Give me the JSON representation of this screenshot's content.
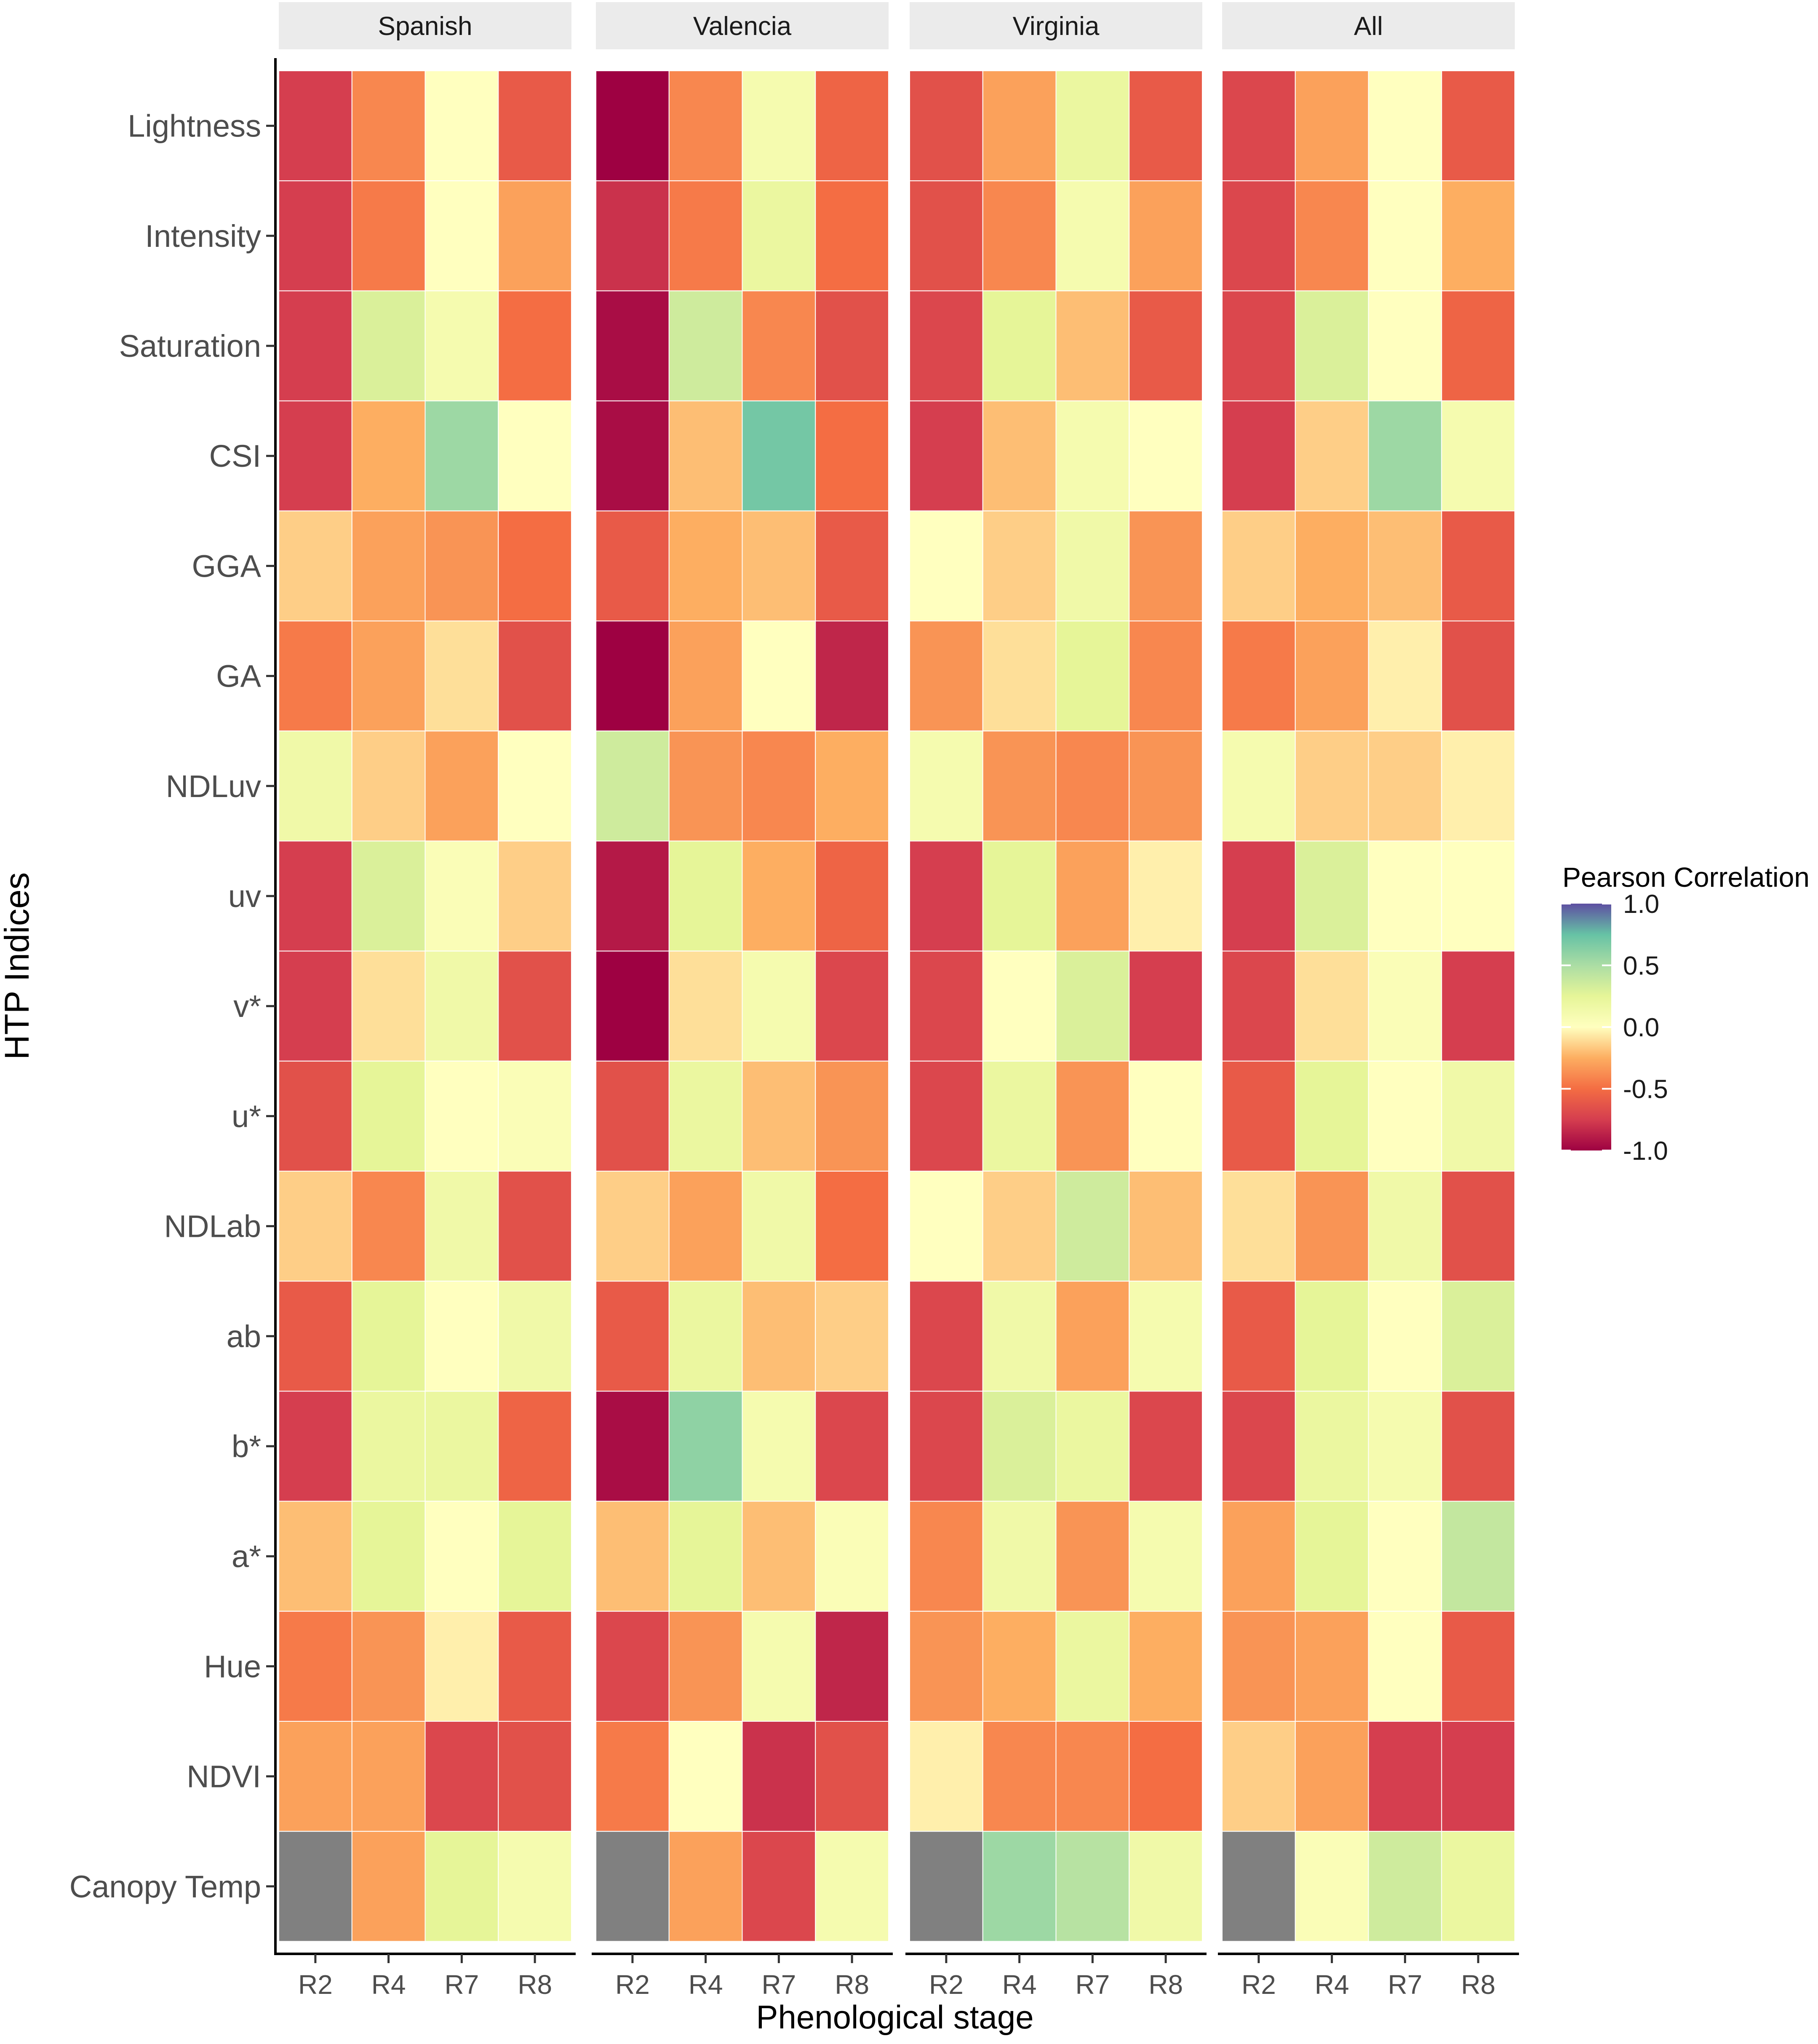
{
  "chart_data": {
    "type": "heatmap",
    "facets": [
      "Spanish",
      "Valencia",
      "Virginia",
      "All"
    ],
    "x_categories": [
      "R2",
      "R4",
      "R7",
      "R8"
    ],
    "y_categories": [
      "Lightness",
      "Intensity",
      "Saturation",
      "CSI",
      "GGA",
      "GA",
      "NDLuv",
      "uv",
      "v*",
      "u*",
      "NDLab",
      "ab",
      "b*",
      "a*",
      "Hue",
      "NDVI",
      "Canopy Temp"
    ],
    "xlabel": "Phenological stage",
    "ylabel": "HTP Indices",
    "legend": {
      "title": "Pearson Correlation",
      "range": [
        -1,
        1
      ],
      "ticks": [
        1.0,
        0.5,
        0.0,
        -0.5,
        -1.0
      ],
      "tick_labels": [
        "1.0",
        "0.5",
        "0.0",
        "-0.5",
        "-1.0"
      ]
    },
    "missing_color": "#808080",
    "values": {
      "Spanish": [
        [
          -0.75,
          -0.4,
          0.0,
          -0.6
        ],
        [
          -0.75,
          -0.45,
          0.0,
          -0.3
        ],
        [
          -0.75,
          0.3,
          0.1,
          -0.5
        ],
        [
          -0.75,
          -0.25,
          0.55,
          0.0
        ],
        [
          -0.15,
          -0.3,
          -0.35,
          -0.5
        ],
        [
          -0.45,
          -0.3,
          -0.1,
          -0.65
        ],
        [
          0.15,
          -0.15,
          -0.3,
          0.0
        ],
        [
          -0.75,
          0.3,
          0.05,
          -0.15
        ],
        [
          -0.75,
          -0.1,
          0.15,
          -0.65
        ],
        [
          -0.65,
          0.25,
          0.0,
          0.05
        ],
        [
          -0.15,
          -0.4,
          0.15,
          -0.65
        ],
        [
          -0.6,
          0.25,
          0.0,
          0.15
        ],
        [
          -0.75,
          0.2,
          0.2,
          -0.55
        ],
        [
          -0.2,
          0.25,
          0.0,
          0.25
        ],
        [
          -0.45,
          -0.35,
          -0.05,
          -0.6
        ],
        [
          -0.3,
          -0.3,
          -0.7,
          -0.65
        ],
        [
          null,
          -0.3,
          0.25,
          0.1
        ]
      ],
      "Valencia": [
        [
          -1.0,
          -0.4,
          0.1,
          -0.55
        ],
        [
          -0.8,
          -0.45,
          0.2,
          -0.5
        ],
        [
          -0.95,
          0.35,
          -0.4,
          -0.65
        ],
        [
          -0.95,
          -0.2,
          0.7,
          -0.5
        ],
        [
          -0.6,
          -0.25,
          -0.2,
          -0.6
        ],
        [
          -1.0,
          -0.3,
          0.0,
          -0.85
        ],
        [
          0.35,
          -0.35,
          -0.4,
          -0.25
        ],
        [
          -0.9,
          0.25,
          -0.25,
          -0.55
        ],
        [
          -1.0,
          -0.1,
          0.1,
          -0.7
        ],
        [
          -0.65,
          0.2,
          -0.2,
          -0.35
        ],
        [
          -0.15,
          -0.3,
          0.15,
          -0.5
        ],
        [
          -0.6,
          0.2,
          -0.2,
          -0.15
        ],
        [
          -0.95,
          0.6,
          0.1,
          -0.7
        ],
        [
          -0.2,
          0.25,
          -0.2,
          0.05
        ],
        [
          -0.7,
          -0.35,
          0.1,
          -0.85
        ],
        [
          -0.45,
          0.0,
          -0.8,
          -0.65
        ],
        [
          null,
          -0.3,
          -0.7,
          0.1
        ]
      ],
      "Virginia": [
        [
          -0.65,
          -0.3,
          0.2,
          -0.6
        ],
        [
          -0.65,
          -0.4,
          0.1,
          -0.3
        ],
        [
          -0.7,
          0.25,
          -0.2,
          -0.6
        ],
        [
          -0.75,
          -0.2,
          0.1,
          0.0
        ],
        [
          0.0,
          -0.15,
          0.15,
          -0.35
        ],
        [
          -0.35,
          -0.1,
          0.25,
          -0.4
        ],
        [
          0.1,
          -0.35,
          -0.4,
          -0.35
        ],
        [
          -0.75,
          0.25,
          -0.3,
          -0.05
        ],
        [
          -0.7,
          0.0,
          0.3,
          -0.75
        ],
        [
          -0.7,
          0.2,
          -0.35,
          0.0
        ],
        [
          0.0,
          -0.15,
          0.35,
          -0.2
        ],
        [
          -0.7,
          0.15,
          -0.3,
          0.1
        ],
        [
          -0.7,
          0.3,
          0.2,
          -0.7
        ],
        [
          -0.4,
          0.15,
          -0.35,
          0.1
        ],
        [
          -0.35,
          -0.25,
          0.2,
          -0.25
        ],
        [
          -0.05,
          -0.4,
          -0.4,
          -0.5
        ],
        [
          null,
          0.55,
          0.45,
          0.15
        ]
      ],
      "All": [
        [
          -0.7,
          -0.3,
          0.0,
          -0.6
        ],
        [
          -0.7,
          -0.4,
          0.0,
          -0.25
        ],
        [
          -0.7,
          0.3,
          0.0,
          -0.55
        ],
        [
          -0.75,
          -0.15,
          0.55,
          0.1
        ],
        [
          -0.15,
          -0.25,
          -0.2,
          -0.6
        ],
        [
          -0.45,
          -0.3,
          -0.05,
          -0.65
        ],
        [
          0.1,
          -0.15,
          -0.15,
          -0.05
        ],
        [
          -0.75,
          0.3,
          0.0,
          0.0
        ],
        [
          -0.7,
          -0.1,
          0.05,
          -0.75
        ],
        [
          -0.6,
          0.25,
          0.0,
          0.15
        ],
        [
          -0.1,
          -0.35,
          0.15,
          -0.65
        ],
        [
          -0.6,
          0.25,
          0.0,
          0.3
        ],
        [
          -0.7,
          0.2,
          0.1,
          -0.65
        ],
        [
          -0.3,
          0.25,
          0.0,
          0.4
        ],
        [
          -0.35,
          -0.3,
          0.0,
          -0.6
        ],
        [
          -0.15,
          -0.3,
          -0.75,
          -0.75
        ],
        [
          null,
          0.05,
          0.35,
          0.2
        ]
      ]
    }
  }
}
